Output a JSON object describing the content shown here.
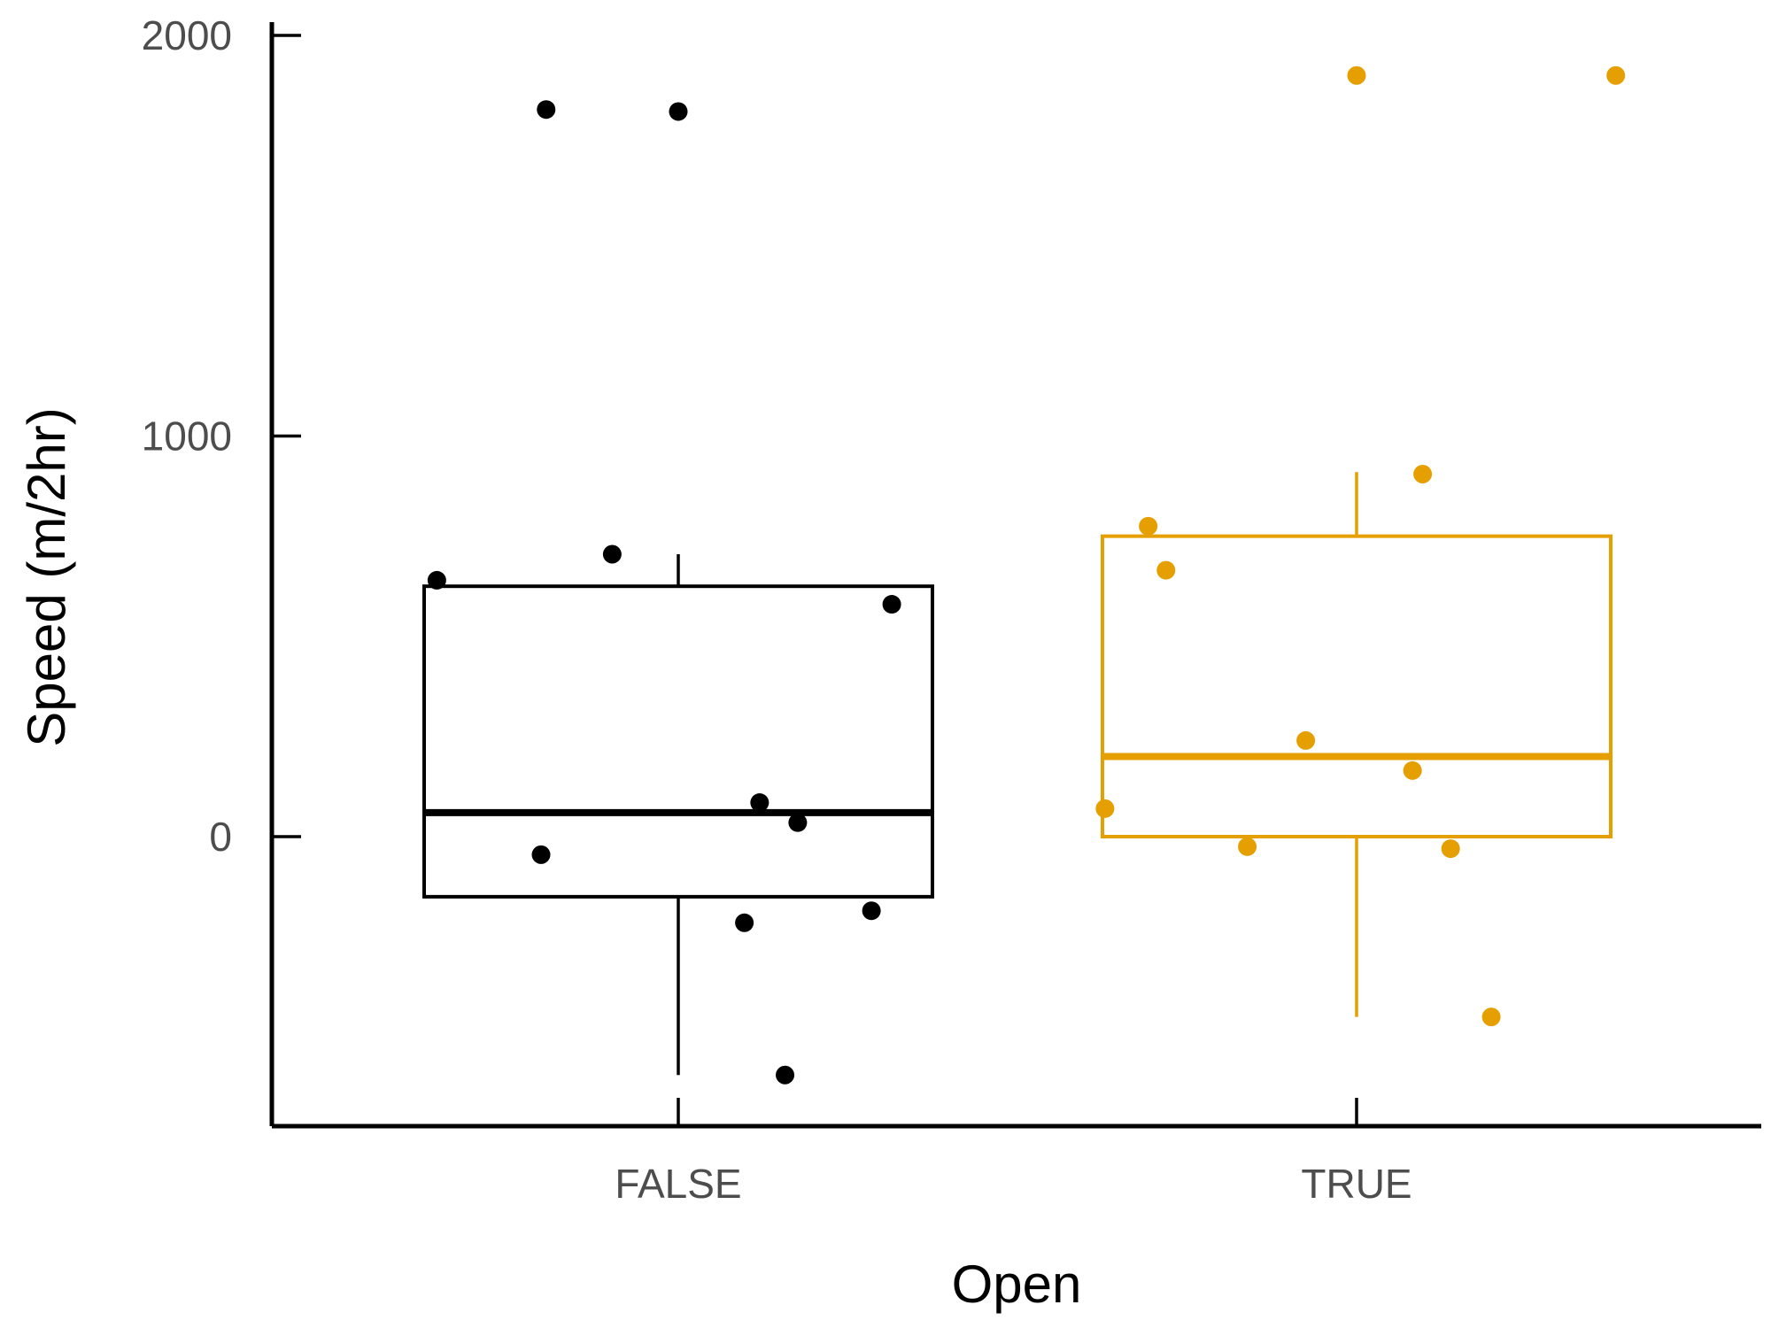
{
  "chart_data": {
    "type": "boxplot",
    "xlabel": "Open",
    "ylabel": "Speed (m/2hr)",
    "categories": [
      "FALSE",
      "TRUE"
    ],
    "y_ticks": [
      0,
      1000,
      2000
    ],
    "y_tick_labels": [
      "0",
      "1000",
      "2000"
    ],
    "ylim": [
      -720,
      2040
    ],
    "grid": false,
    "legend": "none",
    "colors": {
      "FALSE": "#000000",
      "TRUE": "#E69F00"
    },
    "boxes": [
      {
        "category": "FALSE",
        "whisker_low": -595,
        "q1": -150,
        "median": 60,
        "q3": 625,
        "whisker_high": 705
      },
      {
        "category": "TRUE",
        "whisker_low": -450,
        "q1": 0,
        "median": 200,
        "q3": 750,
        "whisker_high": 910
      }
    ],
    "points": [
      {
        "category": "FALSE",
        "jitter": -0.52,
        "y": 1815
      },
      {
        "category": "FALSE",
        "jitter": 0.0,
        "y": 1810
      },
      {
        "category": "FALSE",
        "jitter": -0.26,
        "y": 705
      },
      {
        "category": "FALSE",
        "jitter": -0.95,
        "y": 640
      },
      {
        "category": "FALSE",
        "jitter": 0.84,
        "y": 580
      },
      {
        "category": "FALSE",
        "jitter": 0.32,
        "y": 85
      },
      {
        "category": "FALSE",
        "jitter": 0.47,
        "y": 35
      },
      {
        "category": "FALSE",
        "jitter": -0.54,
        "y": -45
      },
      {
        "category": "FALSE",
        "jitter": 0.76,
        "y": -185
      },
      {
        "category": "FALSE",
        "jitter": 0.26,
        "y": -215
      },
      {
        "category": "FALSE",
        "jitter": 0.42,
        "y": -595
      },
      {
        "category": "TRUE",
        "jitter": 0.0,
        "y": 1900
      },
      {
        "category": "TRUE",
        "jitter": 1.02,
        "y": 1900
      },
      {
        "category": "TRUE",
        "jitter": 0.26,
        "y": 905
      },
      {
        "category": "TRUE",
        "jitter": -0.82,
        "y": 775
      },
      {
        "category": "TRUE",
        "jitter": -0.75,
        "y": 665
      },
      {
        "category": "TRUE",
        "jitter": -0.2,
        "y": 240
      },
      {
        "category": "TRUE",
        "jitter": 0.22,
        "y": 165
      },
      {
        "category": "TRUE",
        "jitter": -0.99,
        "y": 70
      },
      {
        "category": "TRUE",
        "jitter": -0.43,
        "y": -25
      },
      {
        "category": "TRUE",
        "jitter": 0.37,
        "y": -30
      },
      {
        "category": "TRUE",
        "jitter": 0.53,
        "y": -450
      }
    ]
  }
}
